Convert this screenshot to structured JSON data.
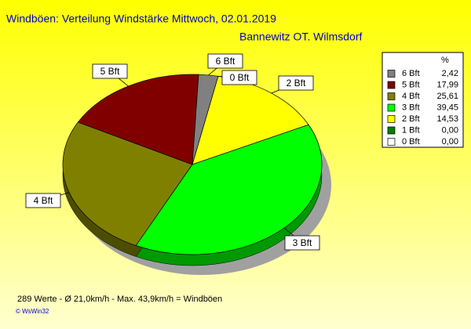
{
  "chart_data": {
    "type": "pie",
    "title": "Windböen: Verteilung Windstärke  Mittwoch, 02.01.2019",
    "subtitle": "Bannewitz OT. Wilmsdorf",
    "legend_header": "%",
    "categories": [
      "6 Bft",
      "5 Bft",
      "4 Bft",
      "3 Bft",
      "2 Bft",
      "1 Bft",
      "0 Bft"
    ],
    "values": [
      2.42,
      17.99,
      25.61,
      39.45,
      14.53,
      0.0,
      0.0
    ],
    "value_labels": [
      "2,42",
      "17,99",
      "25,61",
      "39,45",
      "14,53",
      "0,00",
      "0,00"
    ],
    "colors": [
      "#808080",
      "#800000",
      "#808000",
      "#00ff00",
      "#ffff00",
      "#008000",
      "#ffffff"
    ],
    "footer": "289 Werte   -   Ø 21,0km/h  -  Max. 43,9km/h = Windböen",
    "credit": "© WsWin32"
  }
}
